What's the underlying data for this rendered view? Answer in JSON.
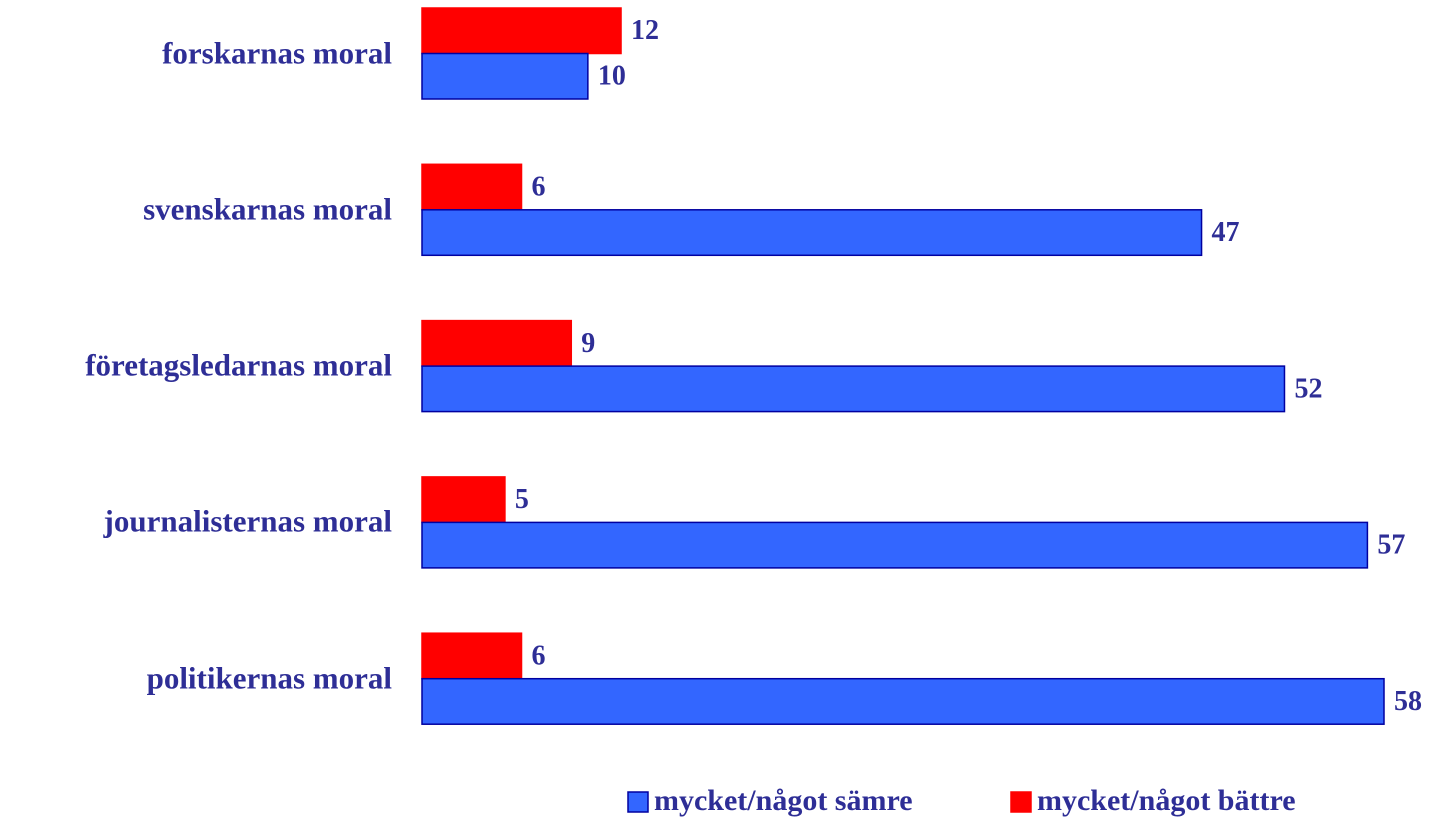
{
  "chart_data": {
    "type": "hbar",
    "categories": [
      "forskarnas moral",
      "svenskarnas moral",
      "företagsledarnas moral",
      "journalisternas moral",
      "politikernas moral"
    ],
    "series": [
      {
        "name": "mycket/något sämre",
        "color": "#3366ff",
        "values": [
          10,
          47,
          52,
          57,
          58
        ]
      },
      {
        "name": "mycket/något bättre",
        "color": "#ff0000",
        "values": [
          12,
          6,
          9,
          5,
          6
        ]
      }
    ],
    "legend": "bottom"
  }
}
